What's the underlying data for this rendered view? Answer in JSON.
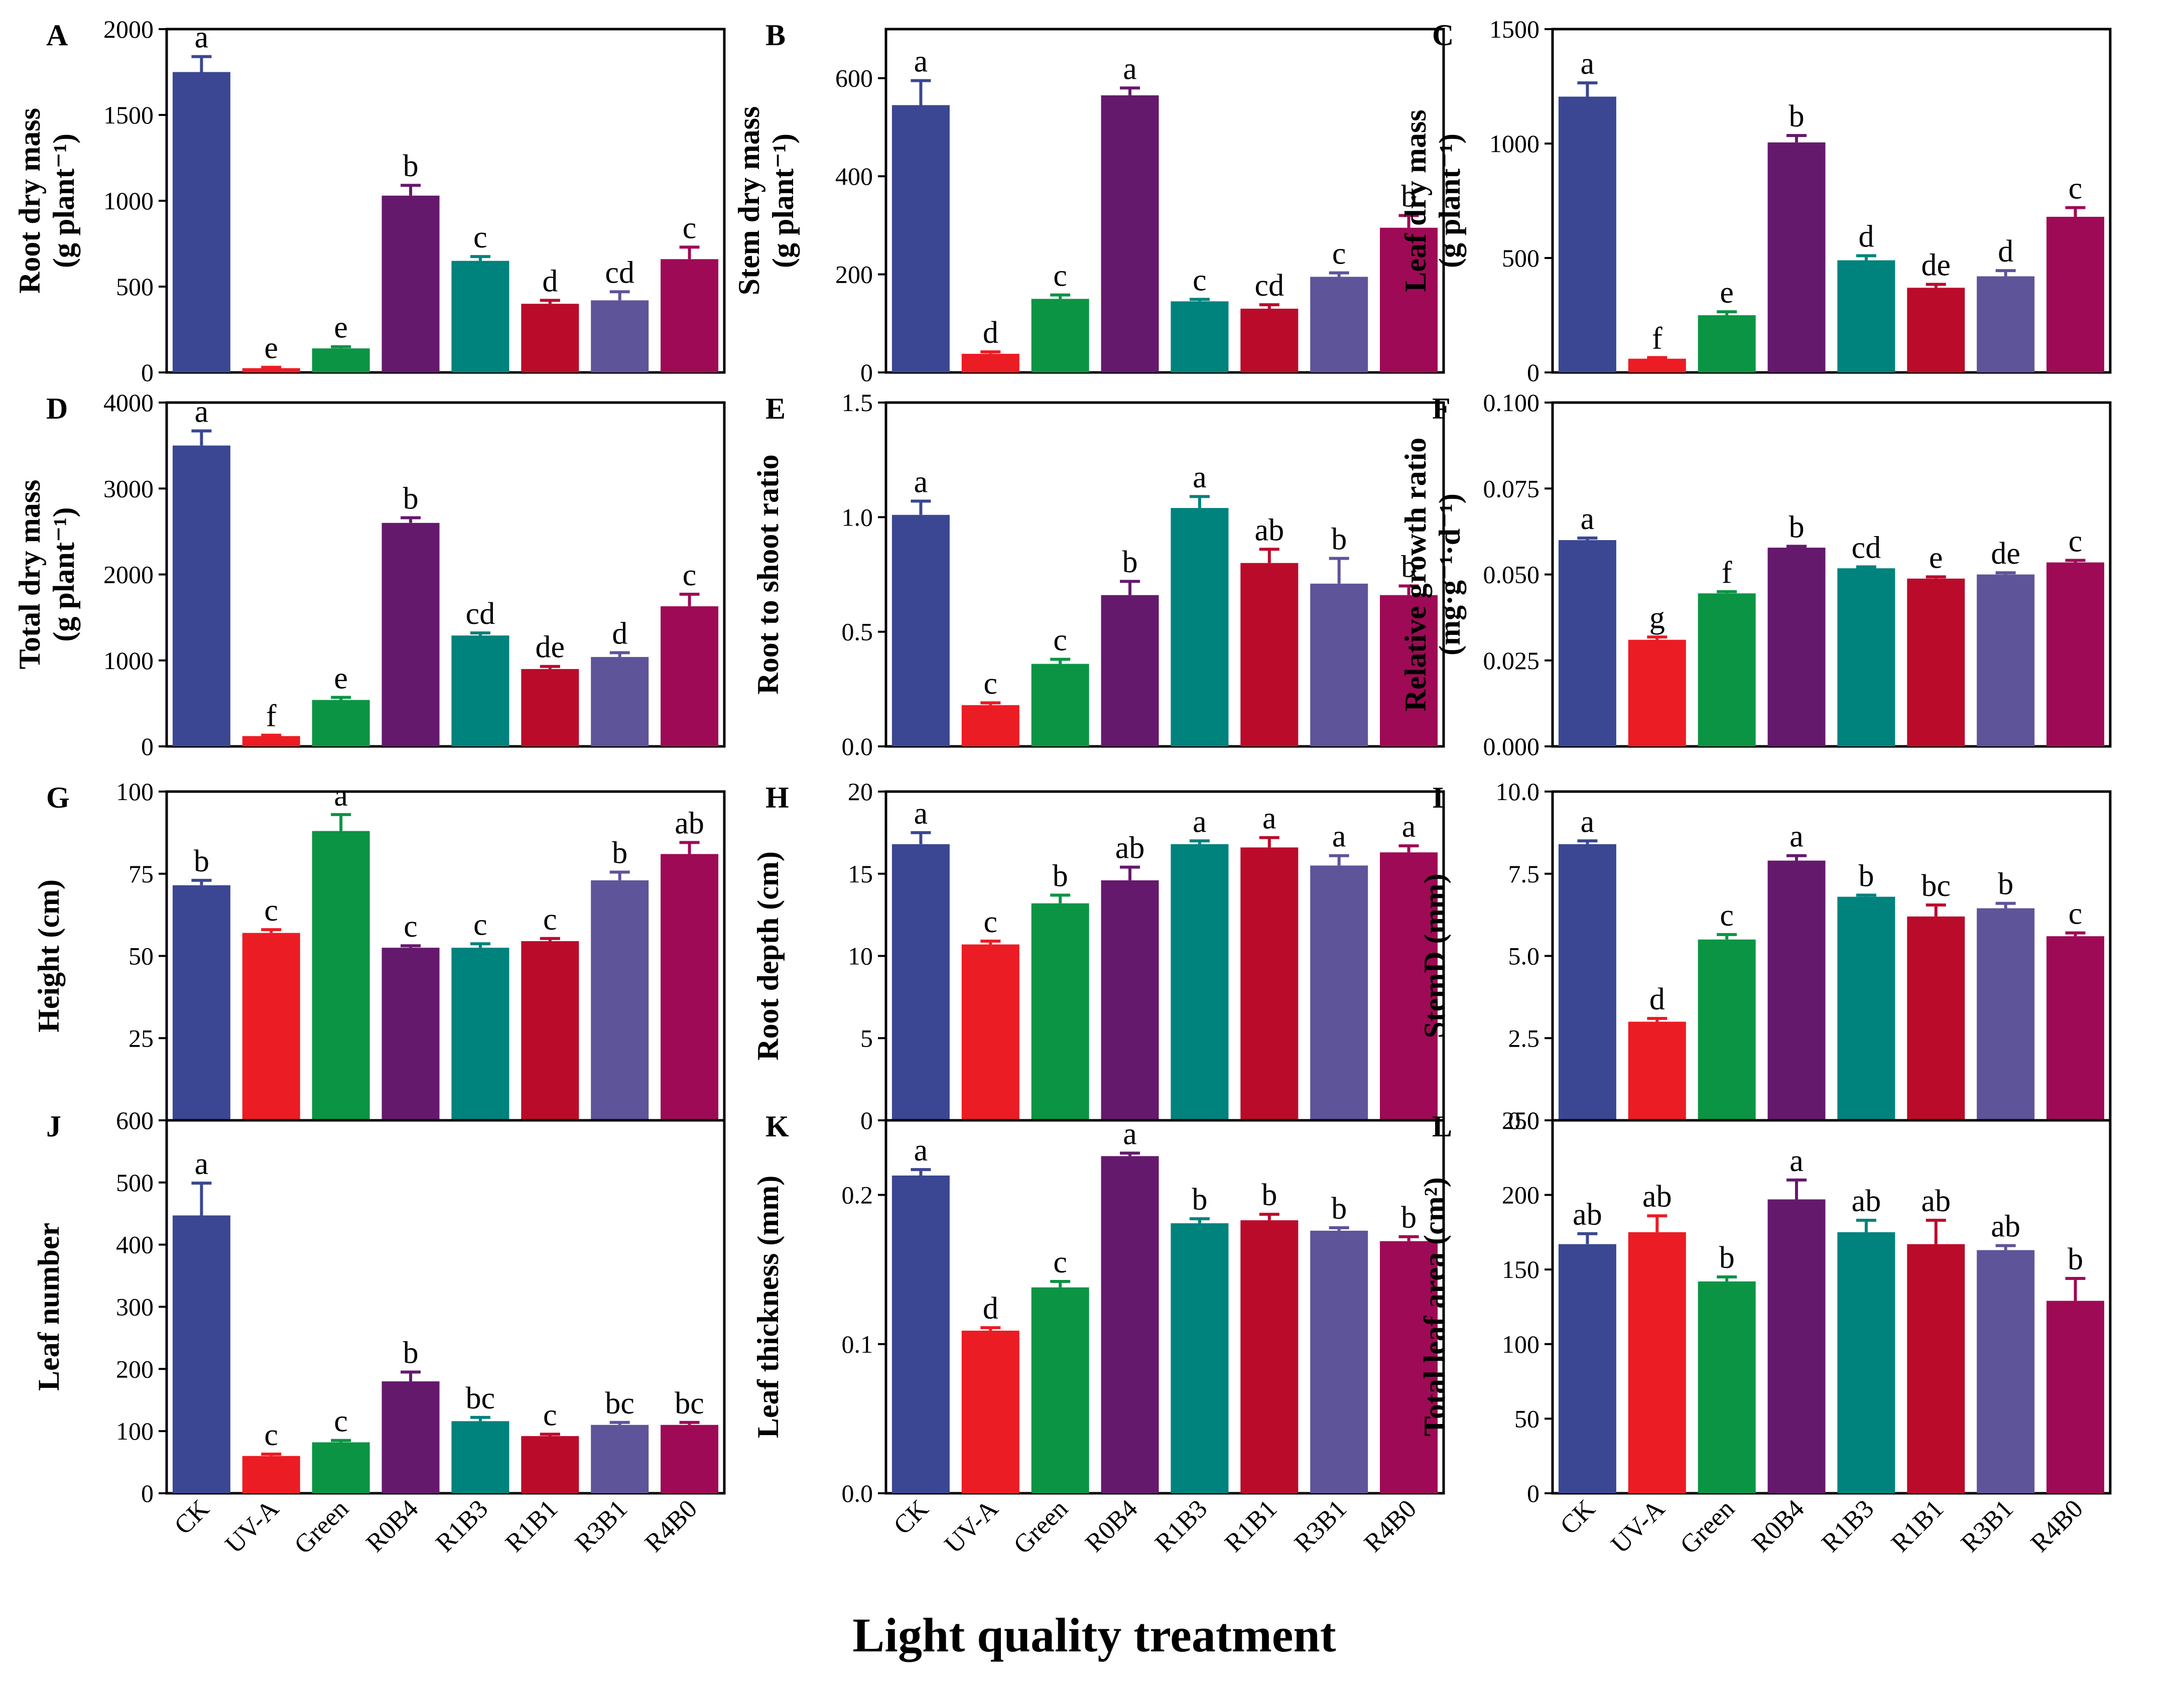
{
  "figure": {
    "x_axis_title": "Light quality treatment",
    "categories": [
      "CK",
      "UV-A",
      "Green",
      "R0B4",
      "R1B3",
      "R1B1",
      "R3B1",
      "R4B0"
    ],
    "bar_colors": [
      "#3B4792",
      "#EC1C24",
      "#0B9444",
      "#65196D",
      "#00827D",
      "#BB0B2B",
      "#5E5499",
      "#9E0A55"
    ]
  },
  "chart_data": [
    {
      "type": "bar",
      "panel_label": "A",
      "ylabel": "Root dry mass",
      "ylabel_unit": "(g plant⁻¹)",
      "ylim": [
        0,
        2000
      ],
      "ticks": [
        0,
        500,
        1000,
        1500,
        2000
      ],
      "tick_labels": [
        "0",
        "500",
        "1000",
        "1500",
        "2000"
      ],
      "values": [
        1750,
        25,
        140,
        1030,
        650,
        400,
        420,
        660
      ],
      "errors": [
        90,
        5,
        10,
        60,
        25,
        20,
        50,
        70
      ],
      "letters": [
        "a",
        "e",
        "e",
        "b",
        "c",
        "d",
        "cd",
        "c"
      ]
    },
    {
      "type": "bar",
      "panel_label": "B",
      "ylabel": "Stem dry mass",
      "ylabel_unit": "(g plant⁻¹)",
      "ylim": [
        0,
        700
      ],
      "ticks": [
        0,
        200,
        400,
        600
      ],
      "tick_labels": [
        "0",
        "200",
        "400",
        "600"
      ],
      "values": [
        545,
        38,
        150,
        565,
        145,
        130,
        195,
        295
      ],
      "errors": [
        50,
        4,
        8,
        15,
        4,
        8,
        8,
        25
      ],
      "letters": [
        "a",
        "d",
        "c",
        "a",
        "c",
        "cd",
        "c",
        "b"
      ]
    },
    {
      "type": "bar",
      "panel_label": "C",
      "ylabel": "Leaf dry mass",
      "ylabel_unit": "(g plant⁻¹)",
      "ylim": [
        0,
        1500
      ],
      "ticks": [
        0,
        500,
        1000,
        1500
      ],
      "tick_labels": [
        "0",
        "500",
        "1000",
        "1500"
      ],
      "values": [
        1205,
        60,
        250,
        1005,
        490,
        370,
        420,
        680
      ],
      "errors": [
        60,
        5,
        15,
        30,
        20,
        15,
        25,
        40
      ],
      "letters": [
        "a",
        "f",
        "e",
        "b",
        "d",
        "de",
        "d",
        "c"
      ]
    },
    {
      "type": "bar",
      "panel_label": "D",
      "ylabel": "Total dry mass",
      "ylabel_unit": "(g plant⁻¹)",
      "ylim": [
        0,
        4000
      ],
      "ticks": [
        0,
        1000,
        2000,
        3000,
        4000
      ],
      "tick_labels": [
        "0",
        "1000",
        "2000",
        "3000",
        "4000"
      ],
      "values": [
        3500,
        120,
        540,
        2600,
        1290,
        900,
        1040,
        1630
      ],
      "errors": [
        170,
        10,
        30,
        60,
        30,
        30,
        50,
        140
      ],
      "letters": [
        "a",
        "f",
        "e",
        "b",
        "cd",
        "de",
        "d",
        "c"
      ]
    },
    {
      "type": "bar",
      "panel_label": "E",
      "ylabel": "Root to shoot ratio",
      "ylabel_unit": "",
      "ylim": [
        0,
        1.5
      ],
      "ticks": [
        0,
        0.5,
        1.0,
        1.5
      ],
      "tick_labels": [
        "0.0",
        "0.5",
        "1.0",
        "1.5"
      ],
      "values": [
        1.01,
        0.18,
        0.36,
        0.66,
        1.04,
        0.8,
        0.71,
        0.66
      ],
      "errors": [
        0.06,
        0.01,
        0.02,
        0.06,
        0.05,
        0.06,
        0.11,
        0.04
      ],
      "letters": [
        "a",
        "c",
        "c",
        "b",
        "a",
        "ab",
        "b",
        "b"
      ]
    },
    {
      "type": "bar",
      "panel_label": "F",
      "ylabel": "Relative growth ratio",
      "ylabel_unit": "(mg·g⁻¹·d⁻¹)",
      "ylim": [
        0,
        0.1
      ],
      "ticks": [
        0,
        0.025,
        0.05,
        0.075,
        0.1
      ],
      "tick_labels": [
        "0.000",
        "0.025",
        "0.050",
        "0.075",
        "0.100"
      ],
      "values": [
        0.06,
        0.031,
        0.0445,
        0.0578,
        0.0518,
        0.0488,
        0.05,
        0.0535
      ],
      "errors": [
        0.0006,
        0.0008,
        0.0005,
        0.0004,
        0.0004,
        0.0005,
        0.0005,
        0.0006
      ],
      "letters": [
        "a",
        "g",
        "f",
        "b",
        "cd",
        "e",
        "de",
        "c"
      ]
    },
    {
      "type": "bar",
      "panel_label": "G",
      "ylabel": "Height (cm)",
      "ylabel_unit": "",
      "ylim": [
        0,
        100
      ],
      "ticks": [
        0,
        25,
        50,
        75,
        100
      ],
      "tick_labels": [
        "0",
        "25",
        "50",
        "75",
        "100"
      ],
      "values": [
        71.5,
        57,
        88,
        52.5,
        52.5,
        54.5,
        73,
        81
      ],
      "errors": [
        1.5,
        1,
        5,
        0.6,
        1.2,
        0.8,
        2.5,
        3.5
      ],
      "letters": [
        "b",
        "c",
        "a",
        "c",
        "c",
        "c",
        "b",
        "ab"
      ]
    },
    {
      "type": "bar",
      "panel_label": "H",
      "ylabel": "Root depth (cm)",
      "ylabel_unit": "",
      "ylim": [
        0,
        20
      ],
      "ticks": [
        0,
        5,
        10,
        15,
        20
      ],
      "tick_labels": [
        "0",
        "5",
        "10",
        "15",
        "20"
      ],
      "values": [
        16.8,
        10.7,
        13.2,
        14.6,
        16.8,
        16.6,
        15.5,
        16.3
      ],
      "errors": [
        0.7,
        0.2,
        0.5,
        0.8,
        0.2,
        0.6,
        0.6,
        0.4
      ],
      "letters": [
        "a",
        "c",
        "b",
        "ab",
        "a",
        "a",
        "a",
        "a"
      ]
    },
    {
      "type": "bar",
      "panel_label": "I",
      "ylabel": "StemD (mm)",
      "ylabel_unit": "",
      "ylim": [
        0,
        10
      ],
      "ticks": [
        0,
        2.5,
        5,
        7.5,
        10
      ],
      "tick_labels": [
        "0.0",
        "2.5",
        "5.0",
        "7.5",
        "10.0"
      ],
      "values": [
        8.4,
        3.0,
        5.5,
        7.9,
        6.8,
        6.2,
        6.45,
        5.6
      ],
      "errors": [
        0.1,
        0.1,
        0.15,
        0.15,
        0.05,
        0.35,
        0.15,
        0.1
      ],
      "letters": [
        "a",
        "d",
        "c",
        "a",
        "b",
        "bc",
        "b",
        "c"
      ]
    },
    {
      "type": "bar",
      "panel_label": "J",
      "ylabel": "Leaf number",
      "ylabel_unit": "",
      "ylim": [
        0,
        600
      ],
      "ticks": [
        0,
        100,
        200,
        300,
        400,
        500,
        600
      ],
      "tick_labels": [
        "0",
        "100",
        "200",
        "300",
        "400",
        "500",
        "600"
      ],
      "values": [
        447,
        60,
        82,
        180,
        116,
        92,
        110,
        110
      ],
      "errors": [
        52,
        3,
        3,
        15,
        6,
        3,
        4,
        4
      ],
      "letters": [
        "a",
        "c",
        "c",
        "b",
        "bc",
        "c",
        "bc",
        "bc"
      ]
    },
    {
      "type": "bar",
      "panel_label": "K",
      "ylabel": "Leaf thickness (mm)",
      "ylabel_unit": "",
      "ylim": [
        0,
        0.25
      ],
      "ticks": [
        0,
        0.1,
        0.2
      ],
      "tick_labels": [
        "0.0",
        "0.1",
        "0.2"
      ],
      "values": [
        0.213,
        0.109,
        0.138,
        0.226,
        0.181,
        0.183,
        0.176,
        0.169
      ],
      "errors": [
        0.004,
        0.002,
        0.004,
        0.002,
        0.003,
        0.004,
        0.002,
        0.003
      ],
      "letters": [
        "a",
        "d",
        "c",
        "a",
        "b",
        "b",
        "b",
        "b"
      ]
    },
    {
      "type": "bar",
      "panel_label": "L",
      "ylabel": "Total leaf area (cm²)",
      "ylabel_unit": "",
      "ylim": [
        0,
        250
      ],
      "ticks": [
        0,
        50,
        100,
        150,
        200,
        250
      ],
      "tick_labels": [
        "0",
        "50",
        "100",
        "150",
        "200",
        "250"
      ],
      "values": [
        167,
        175,
        142,
        197,
        175,
        167,
        163,
        129
      ],
      "errors": [
        7,
        11,
        3,
        13,
        8,
        16,
        3,
        15
      ],
      "letters": [
        "ab",
        "ab",
        "b",
        "a",
        "ab",
        "ab",
        "ab",
        "b"
      ]
    }
  ]
}
